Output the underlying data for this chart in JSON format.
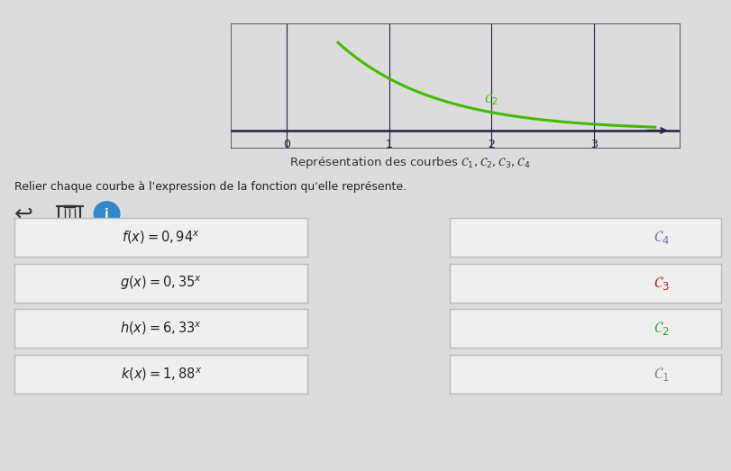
{
  "background_color": "#dcdcdc",
  "top_bar_color": "#e07090",
  "graph_bg_color": "#d4d0c8",
  "graph_line_color": "#222244",
  "graph_curve_color": "#44bb00",
  "title_text": "Représentation des courbes $\\mathcal{C}_1, \\mathcal{C}_2, \\mathcal{C}_3, \\mathcal{C}_4$",
  "subtitle": "Relier chaque courbe à l'expression de la fonction qu'elle représente.",
  "left_labels": [
    "$f(x) = 0,94^x$",
    "$g(x) = 0,35^x$",
    "$h(x) = 6,33^x$",
    "$k(x) = 1,88^x$"
  ],
  "right_labels": [
    "$\\mathcal{C}_4$",
    "$\\mathcal{C}_3$",
    "$\\mathcal{C}_2$",
    "$\\mathcal{C}_1$"
  ],
  "right_label_colors": [
    "#7777bb",
    "#cc2222",
    "#33aa33",
    "#888888"
  ],
  "box_bg_color": "#efefef",
  "box_border_color": "#bbbbbb",
  "curve_label": "$\\mathcal{C}_2$",
  "curve_label_color": "#44bb00"
}
